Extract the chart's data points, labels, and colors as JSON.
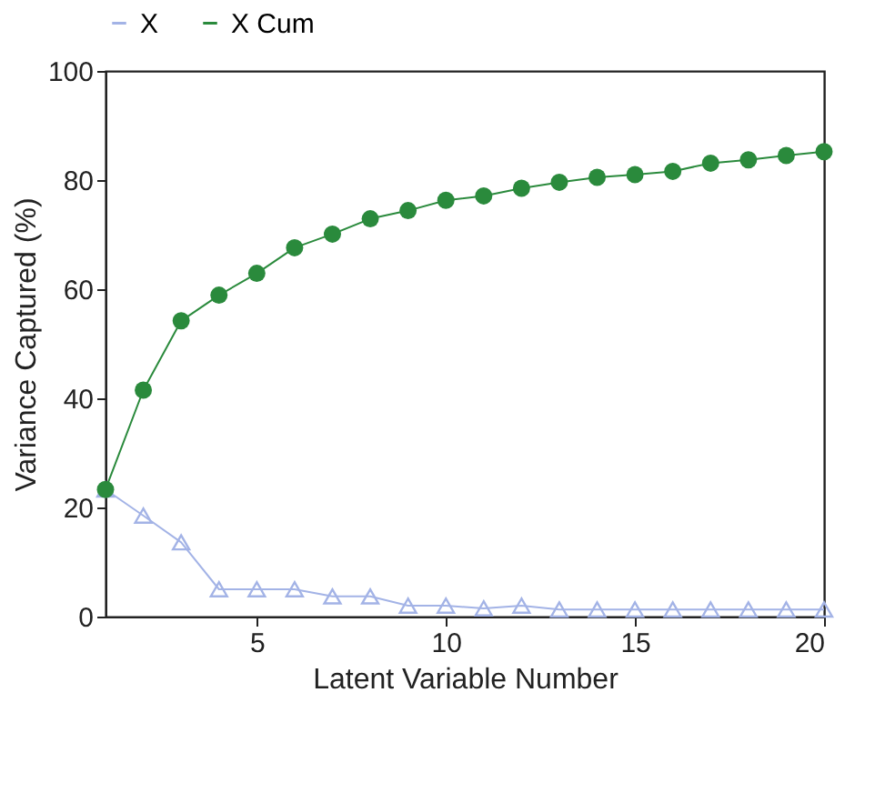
{
  "chart_data": {
    "type": "line",
    "xlabel": "Latent Variable Number",
    "ylabel": "Variance Captured (%)",
    "x": [
      1,
      2,
      3,
      4,
      5,
      6,
      7,
      8,
      9,
      10,
      11,
      12,
      13,
      14,
      15,
      16,
      17,
      18,
      19,
      20
    ],
    "series": [
      {
        "name": "X",
        "color": "#a3b3e6",
        "marker": "triangle",
        "values": [
          23.3,
          18.5,
          13.6,
          5,
          5,
          5,
          3.7,
          3.7,
          2,
          2,
          1.5,
          2,
          1.3,
          1.3,
          1.3,
          1.3,
          1.3,
          1.3,
          1.3,
          1.3
        ]
      },
      {
        "name": "X Cum",
        "color": "#2a8a3c",
        "marker": "circle",
        "values": [
          23.3,
          41.5,
          54.2,
          58.9,
          62.9,
          67.6,
          70.1,
          72.9,
          74.4,
          76.3,
          77.1,
          78.5,
          79.6,
          80.5,
          81.0,
          81.6,
          83.1,
          83.7,
          84.5,
          85.2
        ]
      }
    ],
    "xlim": [
      1,
      20
    ],
    "xticks": [
      5,
      10,
      15,
      20
    ],
    "ylim": [
      0,
      100
    ],
    "yticks": [
      0,
      20,
      40,
      60,
      80,
      100
    ],
    "grid": false,
    "legend": "top",
    "line_style": "solid"
  }
}
